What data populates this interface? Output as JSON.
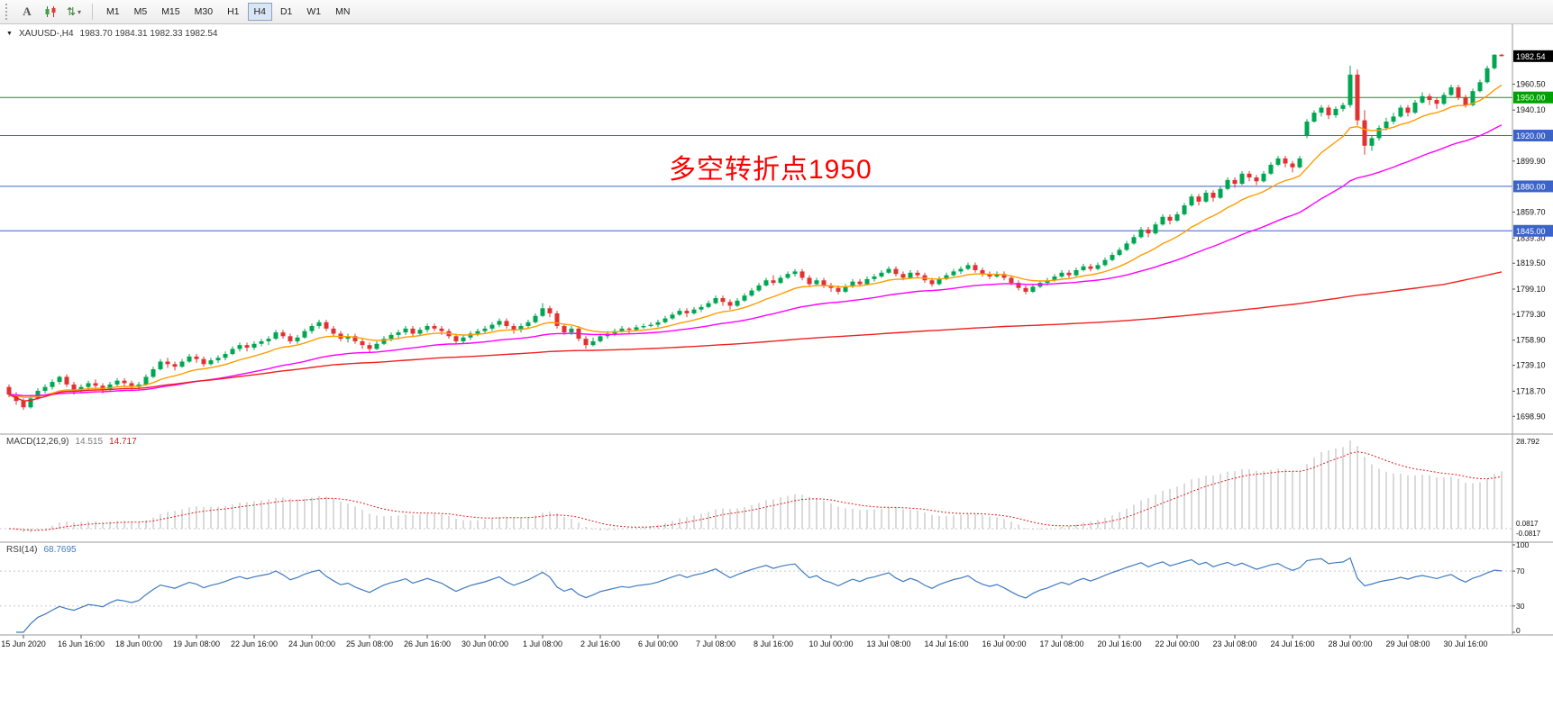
{
  "toolbar": {
    "icons": [
      {
        "name": "text-tool",
        "glyph": "A"
      },
      {
        "name": "candlestick-chart"
      },
      {
        "name": "objects-dropdown",
        "glyph": "⇅",
        "caret": "▾"
      }
    ],
    "timeframes": [
      "M1",
      "M5",
      "M15",
      "M30",
      "H1",
      "H4",
      "D1",
      "W1",
      "MN"
    ],
    "active": "H4"
  },
  "chart": {
    "marker": "▼",
    "symbol": "XAUUSD-,H4",
    "ohlc_readout": "1983.70 1984.31 1982.33 1982.54",
    "current_price_tag": "1982.54",
    "annotation": {
      "text": "多空转折点1950",
      "color": "#FF0000"
    },
    "y_axis_labels": [
      "1960.50",
      "1940.10",
      "1899.90",
      "1859.70",
      "1839.30",
      "1819.50",
      "1799.10",
      "1779.30",
      "1758.90",
      "1739.10",
      "1718.70",
      "1698.90"
    ],
    "time_axis_labels": [
      "15 Jun 2020",
      "16 Jun 16:00",
      "18 Jun 00:00",
      "19 Jun 08:00",
      "22 Jun 16:00",
      "24 Jun 00:00",
      "25 Jun 08:00",
      "26 Jun 16:00",
      "30 Jun 00:00",
      "1 Jul 08:00",
      "2 Jul 16:00",
      "6 Jul 00:00",
      "7 Jul 08:00",
      "8 Jul 16:00",
      "10 Jul 00:00",
      "13 Jul 08:00",
      "14 Jul 16:00",
      "16 Jul 00:00",
      "17 Jul 08:00",
      "20 Jul 16:00",
      "22 Jul 00:00",
      "23 Jul 08:00",
      "24 Jul 16:00",
      "28 Jul 00:00",
      "29 Jul 08:00",
      "30 Jul 16:00"
    ],
    "colors": {
      "up": "#00a651",
      "down": "#e03232",
      "macd_hist": "#b4b4b4",
      "macd_signal": "#e02020",
      "rsi": "#3e7ac2",
      "level_green": "#00a000",
      "level_blue": "#3c64c8"
    }
  },
  "macd_panel": {
    "title": "MACD(12,26,9)",
    "value_main": "14.515",
    "value_signal": "14.717",
    "axis_top": "28.792",
    "axis_bottom_1": "0.0817",
    "axis_bottom_2": "-0.0817"
  },
  "rsi_panel": {
    "title": "RSI(14)",
    "value": "68.7695",
    "axis": [
      "100",
      "70",
      "30",
      "0"
    ],
    "levels": [
      70,
      30
    ]
  },
  "chart_data": {
    "type": "candlestick",
    "symbol": "XAUUSD",
    "timeframe": "H4",
    "title": "XAUUSD-,H4 1983.70 1984.31 1982.33 1982.54",
    "x_range": [
      "15 Jun 2020",
      "31 Jul 2020"
    ],
    "y_range": [
      1692,
      1992
    ],
    "horizontal_levels": [
      {
        "value": 1950.0,
        "label": "1950.00",
        "color": "#00a000"
      },
      {
        "value": 1920.0,
        "label": "1920.00",
        "color": "#3c64c8"
      },
      {
        "value": 1880.0,
        "label": "1880.00",
        "color": "#3c64c8"
      },
      {
        "value": 1845.0,
        "label": "1845.00",
        "color": "#3c64c8"
      }
    ],
    "moving_averages": [
      {
        "name": "fast-ma",
        "period": 13,
        "method": "ema",
        "color": "#ff9c00"
      },
      {
        "name": "mid-ma",
        "period": 40,
        "method": "ema",
        "color": "#ff00ff"
      },
      {
        "name": "slow-ma",
        "period": 200,
        "method": "sma",
        "color": "#f02020"
      }
    ],
    "indicators": [
      {
        "type": "MACD",
        "params": [
          12,
          26,
          9
        ],
        "current": [
          14.515,
          14.717
        ]
      },
      {
        "type": "RSI",
        "params": [
          14
        ],
        "current": 68.7695
      }
    ],
    "candles": [
      [
        1722,
        1724,
        1714,
        1716
      ],
      [
        1716,
        1718,
        1708,
        1711
      ],
      [
        1711,
        1713,
        1704,
        1706
      ],
      [
        1706,
        1715,
        1705,
        1713
      ],
      [
        1713,
        1721,
        1712,
        1719
      ],
      [
        1719,
        1724,
        1717,
        1722
      ],
      [
        1722,
        1728,
        1720,
        1726
      ],
      [
        1726,
        1731,
        1724,
        1730
      ],
      [
        1730,
        1732,
        1722,
        1724
      ],
      [
        1724,
        1726,
        1716,
        1719
      ],
      [
        1719,
        1724,
        1717,
        1722
      ],
      [
        1722,
        1727,
        1720,
        1725
      ],
      [
        1725,
        1728,
        1721,
        1723
      ],
      [
        1723,
        1725,
        1717,
        1720
      ],
      [
        1720,
        1726,
        1719,
        1724
      ],
      [
        1724,
        1729,
        1722,
        1727
      ],
      [
        1727,
        1729,
        1722,
        1725
      ],
      [
        1725,
        1727,
        1720,
        1722
      ],
      [
        1722,
        1726,
        1719,
        1724
      ],
      [
        1724,
        1732,
        1723,
        1730
      ],
      [
        1730,
        1738,
        1729,
        1736
      ],
      [
        1736,
        1744,
        1735,
        1742
      ],
      [
        1742,
        1745,
        1737,
        1740
      ],
      [
        1740,
        1742,
        1735,
        1738
      ],
      [
        1738,
        1744,
        1737,
        1742
      ],
      [
        1742,
        1748,
        1741,
        1746
      ],
      [
        1746,
        1748,
        1741,
        1744
      ],
      [
        1744,
        1746,
        1738,
        1740
      ],
      [
        1740,
        1745,
        1739,
        1743
      ],
      [
        1743,
        1747,
        1741,
        1745
      ],
      [
        1745,
        1750,
        1743,
        1748
      ],
      [
        1748,
        1754,
        1747,
        1752
      ],
      [
        1752,
        1757,
        1750,
        1755
      ],
      [
        1755,
        1757,
        1750,
        1753
      ],
      [
        1753,
        1758,
        1751,
        1756
      ],
      [
        1756,
        1760,
        1754,
        1758
      ],
      [
        1758,
        1762,
        1755,
        1760
      ],
      [
        1760,
        1767,
        1759,
        1765
      ],
      [
        1765,
        1767,
        1760,
        1762
      ],
      [
        1762,
        1764,
        1756,
        1758
      ],
      [
        1758,
        1763,
        1756,
        1761
      ],
      [
        1761,
        1768,
        1760,
        1766
      ],
      [
        1766,
        1772,
        1764,
        1770
      ],
      [
        1770,
        1775,
        1768,
        1773
      ],
      [
        1773,
        1775,
        1766,
        1768
      ],
      [
        1768,
        1770,
        1762,
        1764
      ],
      [
        1764,
        1766,
        1758,
        1760
      ],
      [
        1760,
        1764,
        1757,
        1762
      ],
      [
        1762,
        1764,
        1756,
        1758
      ],
      [
        1758,
        1760,
        1752,
        1755
      ],
      [
        1755,
        1757,
        1749,
        1752
      ],
      [
        1752,
        1758,
        1751,
        1756
      ],
      [
        1756,
        1762,
        1755,
        1760
      ],
      [
        1760,
        1765,
        1758,
        1763
      ],
      [
        1763,
        1767,
        1760,
        1765
      ],
      [
        1765,
        1770,
        1763,
        1768
      ],
      [
        1768,
        1770,
        1762,
        1764
      ],
      [
        1764,
        1769,
        1762,
        1767
      ],
      [
        1767,
        1772,
        1765,
        1770
      ],
      [
        1770,
        1772,
        1766,
        1768
      ],
      [
        1768,
        1770,
        1763,
        1766
      ],
      [
        1766,
        1768,
        1760,
        1762
      ],
      [
        1762,
        1764,
        1756,
        1758
      ],
      [
        1758,
        1763,
        1756,
        1761
      ],
      [
        1761,
        1766,
        1759,
        1764
      ],
      [
        1764,
        1768,
        1762,
        1766
      ],
      [
        1766,
        1770,
        1764,
        1768
      ],
      [
        1768,
        1773,
        1766,
        1771
      ],
      [
        1771,
        1776,
        1769,
        1774
      ],
      [
        1774,
        1776,
        1768,
        1770
      ],
      [
        1770,
        1772,
        1764,
        1767
      ],
      [
        1767,
        1772,
        1765,
        1770
      ],
      [
        1770,
        1775,
        1768,
        1773
      ],
      [
        1773,
        1780,
        1772,
        1778
      ],
      [
        1778,
        1788,
        1777,
        1784
      ],
      [
        1784,
        1786,
        1777,
        1780
      ],
      [
        1780,
        1782,
        1768,
        1770
      ],
      [
        1770,
        1772,
        1763,
        1765
      ],
      [
        1765,
        1770,
        1763,
        1768
      ],
      [
        1768,
        1770,
        1758,
        1760
      ],
      [
        1760,
        1762,
        1752,
        1755
      ],
      [
        1755,
        1761,
        1754,
        1758
      ],
      [
        1758,
        1764,
        1757,
        1762
      ],
      [
        1762,
        1766,
        1760,
        1764
      ],
      [
        1764,
        1768,
        1762,
        1766
      ],
      [
        1766,
        1770,
        1765,
        1768
      ],
      [
        1768,
        1769,
        1764,
        1767
      ],
      [
        1767,
        1771,
        1766,
        1769
      ],
      [
        1769,
        1772,
        1768,
        1770
      ],
      [
        1770,
        1773,
        1769,
        1771
      ],
      [
        1771,
        1775,
        1769,
        1773
      ],
      [
        1773,
        1778,
        1772,
        1776
      ],
      [
        1776,
        1781,
        1775,
        1779
      ],
      [
        1779,
        1784,
        1778,
        1782
      ],
      [
        1782,
        1784,
        1777,
        1780
      ],
      [
        1780,
        1785,
        1779,
        1783
      ],
      [
        1783,
        1787,
        1781,
        1785
      ],
      [
        1785,
        1790,
        1784,
        1788
      ],
      [
        1788,
        1794,
        1787,
        1792
      ],
      [
        1792,
        1794,
        1786,
        1789
      ],
      [
        1789,
        1791,
        1783,
        1786
      ],
      [
        1786,
        1792,
        1785,
        1790
      ],
      [
        1790,
        1796,
        1789,
        1794
      ],
      [
        1794,
        1800,
        1793,
        1798
      ],
      [
        1798,
        1804,
        1797,
        1802
      ],
      [
        1802,
        1808,
        1801,
        1806
      ],
      [
        1806,
        1810,
        1802,
        1804
      ],
      [
        1804,
        1810,
        1803,
        1808
      ],
      [
        1808,
        1813,
        1807,
        1811
      ],
      [
        1811,
        1815,
        1809,
        1813
      ],
      [
        1813,
        1815,
        1806,
        1808
      ],
      [
        1808,
        1810,
        1801,
        1803
      ],
      [
        1803,
        1808,
        1802,
        1806
      ],
      [
        1806,
        1808,
        1800,
        1802
      ],
      [
        1802,
        1804,
        1797,
        1800
      ],
      [
        1800,
        1802,
        1795,
        1797
      ],
      [
        1797,
        1803,
        1796,
        1801
      ],
      [
        1801,
        1807,
        1800,
        1805
      ],
      [
        1805,
        1807,
        1801,
        1803
      ],
      [
        1803,
        1809,
        1802,
        1807
      ],
      [
        1807,
        1811,
        1805,
        1809
      ],
      [
        1809,
        1814,
        1808,
        1812
      ],
      [
        1812,
        1817,
        1811,
        1815
      ],
      [
        1815,
        1817,
        1809,
        1811
      ],
      [
        1811,
        1813,
        1806,
        1808
      ],
      [
        1808,
        1814,
        1807,
        1812
      ],
      [
        1812,
        1814,
        1808,
        1810
      ],
      [
        1810,
        1812,
        1804,
        1806
      ],
      [
        1806,
        1808,
        1801,
        1803
      ],
      [
        1803,
        1809,
        1802,
        1807
      ],
      [
        1807,
        1812,
        1806,
        1810
      ],
      [
        1810,
        1815,
        1809,
        1813
      ],
      [
        1813,
        1817,
        1811,
        1815
      ],
      [
        1815,
        1820,
        1814,
        1818
      ],
      [
        1818,
        1820,
        1812,
        1814
      ],
      [
        1814,
        1816,
        1809,
        1811
      ],
      [
        1811,
        1813,
        1807,
        1809
      ],
      [
        1809,
        1813,
        1808,
        1811
      ],
      [
        1811,
        1813,
        1806,
        1808
      ],
      [
        1808,
        1810,
        1802,
        1804
      ],
      [
        1804,
        1806,
        1798,
        1800
      ],
      [
        1800,
        1802,
        1795,
        1797
      ],
      [
        1797,
        1803,
        1796,
        1801
      ],
      [
        1801,
        1806,
        1800,
        1804
      ],
      [
        1804,
        1808,
        1802,
        1806
      ],
      [
        1806,
        1811,
        1805,
        1809
      ],
      [
        1809,
        1814,
        1808,
        1812
      ],
      [
        1812,
        1814,
        1808,
        1810
      ],
      [
        1810,
        1816,
        1809,
        1814
      ],
      [
        1814,
        1819,
        1813,
        1817
      ],
      [
        1817,
        1819,
        1813,
        1815
      ],
      [
        1815,
        1820,
        1814,
        1818
      ],
      [
        1818,
        1824,
        1817,
        1822
      ],
      [
        1822,
        1828,
        1821,
        1826
      ],
      [
        1826,
        1832,
        1825,
        1830
      ],
      [
        1830,
        1837,
        1829,
        1835
      ],
      [
        1835,
        1842,
        1834,
        1840
      ],
      [
        1840,
        1848,
        1839,
        1846
      ],
      [
        1846,
        1848,
        1840,
        1843
      ],
      [
        1843,
        1852,
        1842,
        1850
      ],
      [
        1850,
        1858,
        1849,
        1856
      ],
      [
        1856,
        1858,
        1850,
        1853
      ],
      [
        1853,
        1860,
        1852,
        1858
      ],
      [
        1858,
        1867,
        1857,
        1865
      ],
      [
        1865,
        1874,
        1864,
        1872
      ],
      [
        1872,
        1874,
        1865,
        1868
      ],
      [
        1868,
        1877,
        1867,
        1875
      ],
      [
        1875,
        1877,
        1868,
        1871
      ],
      [
        1871,
        1880,
        1870,
        1878
      ],
      [
        1878,
        1887,
        1877,
        1885
      ],
      [
        1885,
        1887,
        1879,
        1882
      ],
      [
        1882,
        1892,
        1881,
        1890
      ],
      [
        1890,
        1892,
        1884,
        1887
      ],
      [
        1887,
        1889,
        1881,
        1884
      ],
      [
        1884,
        1892,
        1883,
        1890
      ],
      [
        1890,
        1899,
        1889,
        1897
      ],
      [
        1897,
        1904,
        1896,
        1902
      ],
      [
        1902,
        1904,
        1895,
        1898
      ],
      [
        1898,
        1900,
        1891,
        1895
      ],
      [
        1895,
        1904,
        1894,
        1902
      ],
      [
        1920,
        1933,
        1918,
        1931
      ],
      [
        1931,
        1940,
        1930,
        1938
      ],
      [
        1938,
        1944,
        1935,
        1942
      ],
      [
        1942,
        1944,
        1933,
        1936
      ],
      [
        1936,
        1943,
        1934,
        1941
      ],
      [
        1941,
        1946,
        1939,
        1944
      ],
      [
        1944,
        1975,
        1942,
        1968
      ],
      [
        1968,
        1972,
        1928,
        1932
      ],
      [
        1932,
        1940,
        1905,
        1912
      ],
      [
        1912,
        1920,
        1908,
        1918
      ],
      [
        1918,
        1928,
        1916,
        1926
      ],
      [
        1926,
        1934,
        1924,
        1931
      ],
      [
        1931,
        1938,
        1929,
        1935
      ],
      [
        1935,
        1944,
        1934,
        1942
      ],
      [
        1942,
        1944,
        1935,
        1938
      ],
      [
        1938,
        1948,
        1937,
        1946
      ],
      [
        1946,
        1954,
        1945,
        1951
      ],
      [
        1951,
        1953,
        1944,
        1948
      ],
      [
        1948,
        1950,
        1941,
        1945
      ],
      [
        1945,
        1954,
        1944,
        1952
      ],
      [
        1952,
        1960,
        1951,
        1958
      ],
      [
        1958,
        1960,
        1948,
        1950
      ],
      [
        1950,
        1952,
        1942,
        1944
      ],
      [
        1944,
        1957,
        1943,
        1955
      ],
      [
        1955,
        1964,
        1954,
        1962
      ],
      [
        1962,
        1975,
        1961,
        1973
      ],
      [
        1973,
        1984,
        1972,
        1983.7
      ],
      [
        1983.7,
        1984.31,
        1982.33,
        1982.54
      ]
    ]
  }
}
